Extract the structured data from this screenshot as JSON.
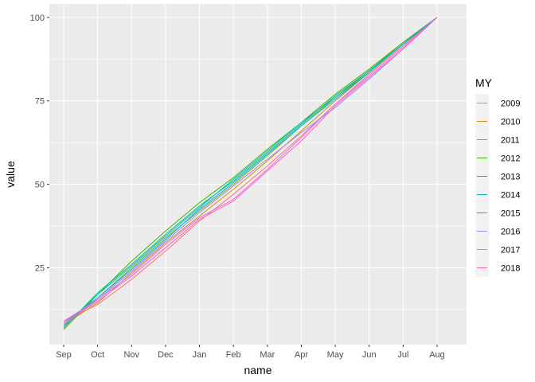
{
  "chart_data": {
    "type": "line",
    "xlabel": "name",
    "ylabel": "value",
    "legend_title": "MY",
    "legend_position": "right",
    "grid": true,
    "ylim": [
      2,
      104
    ],
    "yticks": [
      25,
      50,
      75,
      100
    ],
    "categories": [
      "Sep",
      "Oct",
      "Nov",
      "Dec",
      "Jan",
      "Feb",
      "Mar",
      "Apr",
      "May",
      "Jun",
      "Jul",
      "Aug"
    ],
    "series": [
      {
        "name": "2009",
        "color": "#F8766D",
        "values": [
          9.0,
          14.0,
          21.5,
          30.0,
          39.0,
          47.0,
          55.5,
          64.5,
          74.0,
          83.0,
          91.5,
          100
        ]
      },
      {
        "name": "2010",
        "color": "#D89000",
        "values": [
          8.0,
          14.5,
          23.5,
          32.5,
          40.5,
          48.5,
          57.0,
          66.0,
          75.0,
          83.5,
          92.0,
          100
        ]
      },
      {
        "name": "2011",
        "color": "#A3A500",
        "values": [
          7.5,
          16.0,
          25.0,
          34.0,
          42.0,
          50.0,
          58.5,
          67.5,
          76.0,
          84.0,
          92.5,
          100
        ]
      },
      {
        "name": "2012",
        "color": "#39B600",
        "values": [
          6.5,
          17.0,
          27.0,
          36.0,
          44.5,
          52.0,
          60.5,
          68.5,
          77.0,
          84.5,
          92.5,
          100
        ]
      },
      {
        "name": "2013",
        "color": "#00BF7D",
        "values": [
          7.0,
          17.5,
          26.0,
          35.0,
          43.5,
          51.0,
          59.5,
          68.0,
          76.5,
          84.0,
          92.0,
          100
        ]
      },
      {
        "name": "2014",
        "color": "#00BFC4",
        "values": [
          7.5,
          17.0,
          25.5,
          34.5,
          43.0,
          51.5,
          60.0,
          68.5,
          76.0,
          83.5,
          92.0,
          100
        ]
      },
      {
        "name": "2015",
        "color": "#00B0F6",
        "values": [
          8.5,
          16.0,
          24.5,
          33.5,
          42.5,
          50.5,
          59.0,
          67.5,
          75.5,
          83.5,
          92.0,
          100
        ]
      },
      {
        "name": "2016",
        "color": "#9590FF",
        "values": [
          8.0,
          15.5,
          24.0,
          33.0,
          41.5,
          49.5,
          57.5,
          65.5,
          73.0,
          81.5,
          90.5,
          100
        ]
      },
      {
        "name": "2017",
        "color": "#E76BF3",
        "values": [
          9.0,
          15.5,
          23.0,
          32.0,
          40.0,
          45.5,
          54.5,
          64.0,
          74.0,
          82.5,
          91.0,
          100
        ]
      },
      {
        "name": "2018",
        "color": "#FF62BC",
        "values": [
          8.5,
          15.0,
          22.5,
          31.0,
          39.5,
          45.0,
          54.0,
          63.0,
          73.5,
          82.0,
          90.5,
          100
        ]
      }
    ]
  }
}
